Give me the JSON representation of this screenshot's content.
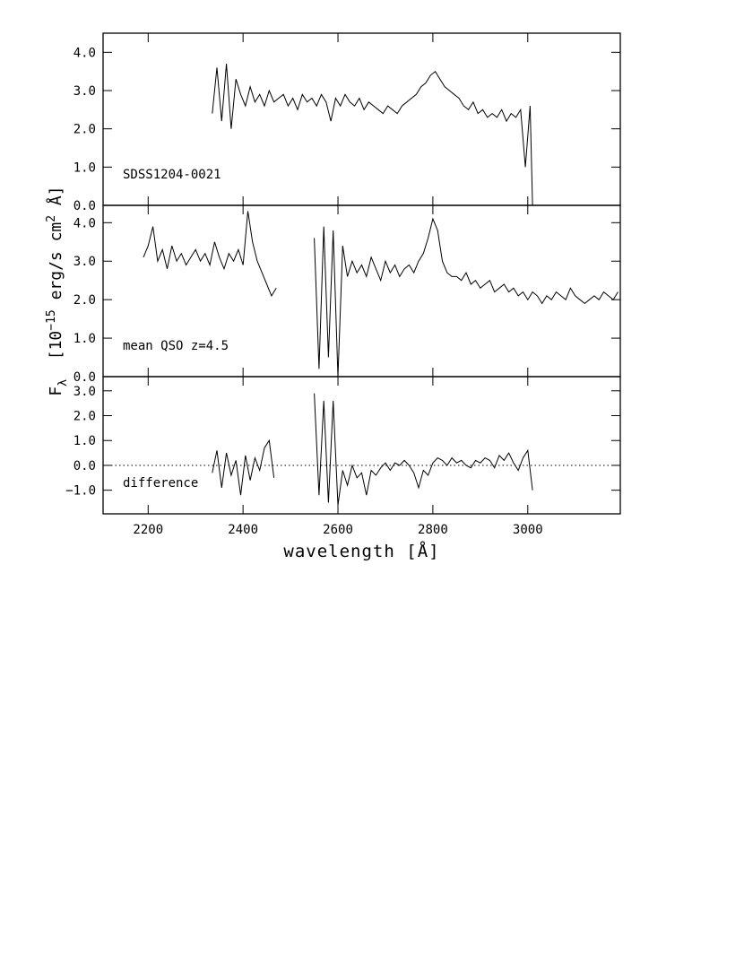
{
  "chart_data": [
    {
      "type": "line",
      "xlim": [
        2105,
        3195
      ],
      "ylim": [
        0,
        4.5
      ],
      "yticks": [
        {
          "value": 0,
          "label": "0.0"
        },
        {
          "value": 1,
          "label": "1.0"
        },
        {
          "value": 2,
          "label": "2.0"
        },
        {
          "value": 3,
          "label": "3.0"
        },
        {
          "value": 4,
          "label": "4.0"
        }
      ],
      "annotation": "SDSS1204-0021",
      "series": [
        {
          "color": "#000000",
          "x": [
            2335,
            2345,
            2355,
            2365,
            2375,
            2385,
            2395,
            2405,
            2415,
            2425,
            2435,
            2445,
            2455,
            2465,
            2475,
            2485,
            2495,
            2505,
            2515,
            2525,
            2535,
            2545,
            2555,
            2565,
            2575,
            2585,
            2595,
            2605,
            2615,
            2625,
            2635,
            2645,
            2655,
            2665,
            2675,
            2685,
            2695,
            2705,
            2715,
            2725,
            2735,
            2745,
            2755,
            2765,
            2775,
            2785,
            2795,
            2805,
            2815,
            2825,
            2835,
            2845,
            2855,
            2865,
            2875,
            2885,
            2895,
            2905,
            2915,
            2925,
            2935,
            2945,
            2955,
            2965,
            2975,
            2985,
            2995,
            3005,
            3010
          ],
          "values": [
            2.4,
            3.6,
            2.2,
            3.7,
            2.0,
            3.3,
            2.9,
            2.6,
            3.1,
            2.7,
            2.9,
            2.6,
            3.0,
            2.7,
            2.8,
            2.9,
            2.6,
            2.8,
            2.5,
            2.9,
            2.7,
            2.8,
            2.6,
            2.9,
            2.7,
            2.2,
            2.8,
            2.6,
            2.9,
            2.7,
            2.6,
            2.8,
            2.5,
            2.7,
            2.6,
            2.5,
            2.4,
            2.6,
            2.5,
            2.4,
            2.6,
            2.7,
            2.8,
            2.9,
            3.1,
            3.2,
            3.4,
            3.5,
            3.3,
            3.1,
            3.0,
            2.9,
            2.8,
            2.6,
            2.5,
            2.7,
            2.4,
            2.5,
            2.3,
            2.4,
            2.3,
            2.5,
            2.2,
            2.4,
            2.3,
            2.5,
            1.0,
            2.6,
            0.0
          ]
        }
      ]
    },
    {
      "type": "line",
      "xlim": [
        2105,
        3195
      ],
      "ylim": [
        0,
        4.45
      ],
      "yticks": [
        {
          "value": 0,
          "label": "0.0"
        },
        {
          "value": 1,
          "label": "1.0"
        },
        {
          "value": 2,
          "label": "2.0"
        },
        {
          "value": 3,
          "label": "3.0"
        },
        {
          "value": 4,
          "label": "4.0"
        }
      ],
      "annotation": "mean QSO z=4.5",
      "ylabel_parts": [
        {
          "text": "F",
          "shift": "none"
        },
        {
          "text": "λ",
          "shift": "sub"
        },
        {
          "text": "  [10",
          "shift": "none"
        },
        {
          "text": "−15",
          "shift": "sup"
        },
        {
          "text": " erg/s cm",
          "shift": "none"
        },
        {
          "text": "2",
          "shift": "sup"
        },
        {
          "text": " Å]",
          "shift": "none"
        }
      ],
      "series": [
        {
          "color": "#000000",
          "x": [
            2190,
            2200,
            2210,
            2220,
            2230,
            2240,
            2250,
            2260,
            2270,
            2280,
            2290,
            2300,
            2310,
            2320,
            2330,
            2340,
            2350,
            2360,
            2370,
            2380,
            2390,
            2400,
            2410,
            2420,
            2430,
            2440,
            2450,
            2460,
            2470,
            2510,
            2550,
            2560,
            2570,
            2580,
            2590,
            2600,
            2610,
            2620,
            2630,
            2640,
            2650,
            2660,
            2670,
            2680,
            2690,
            2700,
            2710,
            2720,
            2730,
            2740,
            2750,
            2760,
            2770,
            2780,
            2790,
            2800,
            2810,
            2820,
            2830,
            2840,
            2850,
            2860,
            2870,
            2880,
            2890,
            2900,
            2910,
            2920,
            2930,
            2940,
            2950,
            2960,
            2970,
            2980,
            2990,
            3000,
            3010,
            3020,
            3030,
            3040,
            3050,
            3060,
            3070,
            3080,
            3090,
            3100,
            3110,
            3120,
            3130,
            3140,
            3150,
            3160,
            3170,
            3180,
            3190
          ],
          "values": [
            3.1,
            3.4,
            3.9,
            3.0,
            3.3,
            2.8,
            3.4,
            3.0,
            3.2,
            2.9,
            3.1,
            3.3,
            3.0,
            3.2,
            2.9,
            3.5,
            3.1,
            2.8,
            3.2,
            3.0,
            3.3,
            2.9,
            4.3,
            3.5,
            3.0,
            2.7,
            2.4,
            2.1,
            2.3,
            null,
            3.6,
            0.2,
            3.9,
            0.5,
            3.8,
            0.0,
            3.4,
            2.6,
            3.0,
            2.7,
            2.9,
            2.6,
            3.1,
            2.8,
            2.5,
            3.0,
            2.7,
            2.9,
            2.6,
            2.8,
            2.9,
            2.7,
            3.0,
            3.2,
            3.6,
            4.1,
            3.8,
            3.0,
            2.7,
            2.6,
            2.6,
            2.5,
            2.7,
            2.4,
            2.5,
            2.3,
            2.4,
            2.5,
            2.2,
            2.3,
            2.4,
            2.2,
            2.3,
            2.1,
            2.2,
            2.0,
            2.2,
            2.1,
            1.9,
            2.1,
            2.0,
            2.2,
            2.1,
            2.0,
            2.3,
            2.1,
            2.0,
            1.9,
            2.0,
            2.1,
            2.0,
            2.2,
            2.1,
            2.0,
            2.2
          ]
        }
      ]
    },
    {
      "type": "line",
      "xlim": [
        2105,
        3195
      ],
      "ylim": [
        -1.95,
        3.57
      ],
      "yticks": [
        {
          "value": -1,
          "label": "−1.0"
        },
        {
          "value": 0,
          "label": "0.0"
        },
        {
          "value": 1,
          "label": "1.0"
        },
        {
          "value": 2,
          "label": "2.0"
        },
        {
          "value": 3,
          "label": "3.0"
        }
      ],
      "xticks": [
        2200,
        2400,
        2600,
        2800,
        3000
      ],
      "xlabel": "wavelength [Å]",
      "annotation": "difference",
      "reference_line": 0,
      "series": [
        {
          "color": "#000000",
          "x": [
            2335,
            2345,
            2355,
            2365,
            2375,
            2385,
            2395,
            2405,
            2415,
            2425,
            2435,
            2445,
            2455,
            2465,
            2510,
            2550,
            2560,
            2570,
            2580,
            2590,
            2600,
            2610,
            2620,
            2630,
            2640,
            2650,
            2660,
            2670,
            2680,
            2690,
            2700,
            2710,
            2720,
            2730,
            2740,
            2750,
            2760,
            2770,
            2780,
            2790,
            2800,
            2810,
            2820,
            2830,
            2840,
            2850,
            2860,
            2870,
            2880,
            2890,
            2900,
            2910,
            2920,
            2930,
            2940,
            2950,
            2960,
            2970,
            2980,
            2990,
            3000,
            3010
          ],
          "values": [
            -0.3,
            0.6,
            -0.9,
            0.5,
            -0.4,
            0.2,
            -1.2,
            0.4,
            -0.6,
            0.3,
            -0.2,
            0.7,
            1.0,
            -0.5,
            null,
            2.9,
            -1.2,
            2.6,
            -1.5,
            2.6,
            -1.6,
            -0.2,
            -0.8,
            0.0,
            -0.5,
            -0.3,
            -1.2,
            -0.2,
            -0.4,
            -0.1,
            0.1,
            -0.2,
            0.1,
            0.0,
            0.2,
            0.0,
            -0.3,
            -0.9,
            -0.2,
            -0.4,
            0.1,
            0.3,
            0.2,
            0.0,
            0.3,
            0.1,
            0.2,
            0.0,
            -0.1,
            0.2,
            0.1,
            0.3,
            0.2,
            -0.1,
            0.4,
            0.2,
            0.5,
            0.1,
            -0.2,
            0.3,
            0.6,
            -1.0
          ]
        }
      ]
    }
  ]
}
